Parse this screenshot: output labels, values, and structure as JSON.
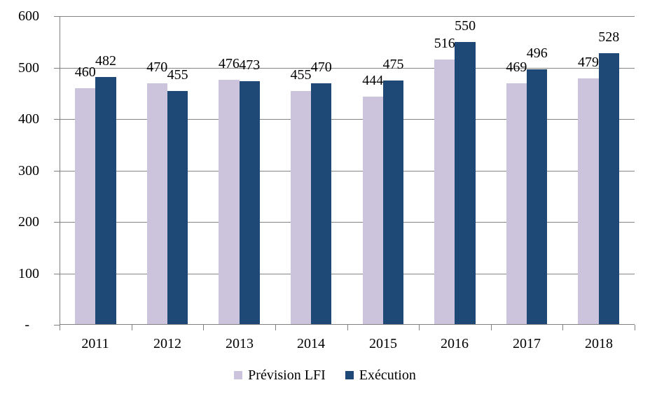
{
  "chart_data": {
    "type": "bar",
    "title": "",
    "categories": [
      "2011",
      "2012",
      "2013",
      "2014",
      "2015",
      "2016",
      "2017",
      "2018"
    ],
    "series": [
      {
        "name": "Prévision LFI",
        "color": "#CCC4DC",
        "values": [
          460,
          470,
          476,
          455,
          444,
          516,
          469,
          479
        ]
      },
      {
        "name": "Exécution",
        "color": "#1E4876",
        "values": [
          482,
          455,
          473,
          470,
          475,
          550,
          496,
          528
        ]
      }
    ],
    "xlabel": "",
    "ylabel": "",
    "ylim": [
      0,
      600
    ],
    "ytick_step": 100,
    "ytick_labels": [
      "-",
      "100",
      "200",
      "300",
      "400",
      "500",
      "600"
    ],
    "zero_tick_label": "-",
    "grid": true,
    "data_labels": true,
    "legend_position": "bottom",
    "axis_color": "#808080",
    "grid_color": "#848484",
    "text_color": "#000000"
  }
}
